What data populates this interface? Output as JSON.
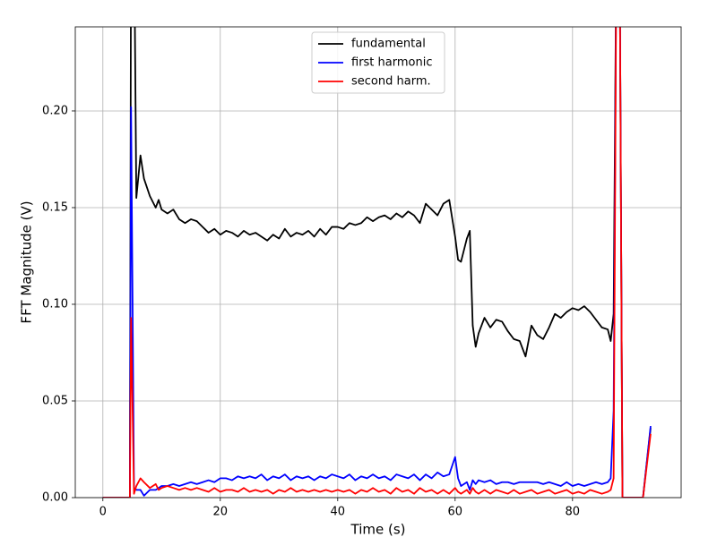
{
  "chart_data": {
    "type": "line",
    "xlabel": "Time (s)",
    "ylabel": "FFT Magnitude (V)",
    "x": [
      0,
      2,
      4,
      4.6,
      4.8,
      5.3,
      5.7,
      6.4,
      7,
      8,
      9,
      9.5,
      10,
      11,
      12,
      13,
      14,
      15,
      16,
      17,
      18,
      19,
      20,
      21,
      22,
      23,
      24,
      25,
      26,
      27,
      28,
      29,
      30,
      31,
      32,
      33,
      34,
      35,
      36,
      37,
      38,
      39,
      40,
      41,
      42,
      43,
      44,
      45,
      46,
      47,
      48,
      49,
      50,
      51,
      52,
      53,
      54,
      55,
      56,
      57,
      58,
      59,
      60,
      60.5,
      61,
      62,
      62.5,
      63,
      63.5,
      64,
      65,
      66,
      67,
      68,
      69,
      70,
      71,
      72,
      73,
      74,
      75,
      76,
      77,
      78,
      79,
      80,
      81,
      82,
      83,
      84,
      85,
      86,
      86.5,
      87,
      87.5,
      88,
      88.5,
      89,
      90,
      91,
      92,
      93.3
    ],
    "series": [
      {
        "name": "fundamental",
        "color": "#000000",
        "values": [
          0,
          0,
          0,
          0,
          0.3,
          0.3,
          0.155,
          0.177,
          0.165,
          0.156,
          0.15,
          0.154,
          0.149,
          0.147,
          0.149,
          0.144,
          0.142,
          0.144,
          0.143,
          0.14,
          0.137,
          0.139,
          0.136,
          0.138,
          0.137,
          0.135,
          0.138,
          0.136,
          0.137,
          0.135,
          0.133,
          0.136,
          0.134,
          0.139,
          0.135,
          0.137,
          0.136,
          0.138,
          0.135,
          0.139,
          0.136,
          0.14,
          0.14,
          0.139,
          0.142,
          0.141,
          0.142,
          0.145,
          0.143,
          0.145,
          0.146,
          0.144,
          0.147,
          0.145,
          0.148,
          0.146,
          0.142,
          0.152,
          0.149,
          0.146,
          0.152,
          0.154,
          0.135,
          0.123,
          0.122,
          0.134,
          0.138,
          0.089,
          0.078,
          0.085,
          0.093,
          0.088,
          0.092,
          0.091,
          0.086,
          0.082,
          0.081,
          0.073,
          0.089,
          0.084,
          0.082,
          0.088,
          0.095,
          0.093,
          0.096,
          0.098,
          0.097,
          0.099,
          0.096,
          0.092,
          0.088,
          0.087,
          0.081,
          0.095,
          0.3,
          0.3,
          0,
          0,
          0,
          0,
          0,
          0.036
        ]
      },
      {
        "name": "first harmonic",
        "color": "#0000ff",
        "values": [
          0,
          0,
          0,
          0,
          0.202,
          0.005,
          0.004,
          0.004,
          0.001,
          0.004,
          0.004,
          0.005,
          0.006,
          0.006,
          0.007,
          0.006,
          0.007,
          0.008,
          0.007,
          0.008,
          0.009,
          0.008,
          0.01,
          0.01,
          0.009,
          0.011,
          0.01,
          0.011,
          0.01,
          0.012,
          0.009,
          0.011,
          0.01,
          0.012,
          0.009,
          0.011,
          0.01,
          0.011,
          0.009,
          0.011,
          0.01,
          0.012,
          0.011,
          0.01,
          0.012,
          0.009,
          0.011,
          0.01,
          0.012,
          0.01,
          0.011,
          0.009,
          0.012,
          0.011,
          0.01,
          0.012,
          0.009,
          0.012,
          0.01,
          0.013,
          0.011,
          0.012,
          0.021,
          0.01,
          0.006,
          0.008,
          0.004,
          0.009,
          0.007,
          0.009,
          0.008,
          0.009,
          0.007,
          0.008,
          0.008,
          0.007,
          0.008,
          0.008,
          0.008,
          0.008,
          0.007,
          0.008,
          0.007,
          0.006,
          0.008,
          0.006,
          0.007,
          0.006,
          0.007,
          0.008,
          0.007,
          0.008,
          0.01,
          0.045,
          0.3,
          0.3,
          0,
          0,
          0,
          0,
          0,
          0.037
        ]
      },
      {
        "name": "second harm.",
        "color": "#ff0000",
        "values": [
          0,
          0,
          0,
          0,
          0.093,
          0.002,
          0.006,
          0.01,
          0.008,
          0.005,
          0.007,
          0.004,
          0.005,
          0.006,
          0.005,
          0.004,
          0.005,
          0.004,
          0.005,
          0.004,
          0.003,
          0.005,
          0.003,
          0.004,
          0.004,
          0.003,
          0.005,
          0.003,
          0.004,
          0.003,
          0.004,
          0.002,
          0.004,
          0.003,
          0.005,
          0.003,
          0.004,
          0.003,
          0.004,
          0.003,
          0.004,
          0.003,
          0.004,
          0.003,
          0.004,
          0.002,
          0.004,
          0.003,
          0.005,
          0.003,
          0.004,
          0.002,
          0.005,
          0.003,
          0.004,
          0.002,
          0.005,
          0.003,
          0.004,
          0.002,
          0.004,
          0.002,
          0.005,
          0.003,
          0.002,
          0.004,
          0.002,
          0.005,
          0.003,
          0.002,
          0.004,
          0.002,
          0.004,
          0.003,
          0.002,
          0.004,
          0.002,
          0.003,
          0.004,
          0.002,
          0.003,
          0.004,
          0.002,
          0.003,
          0.004,
          0.002,
          0.003,
          0.002,
          0.004,
          0.003,
          0.002,
          0.003,
          0.004,
          0.01,
          0.3,
          0.3,
          0,
          0,
          0,
          0,
          0,
          0.033
        ]
      }
    ],
    "xlim": [
      -4.7,
      98.5
    ],
    "ylim": [
      0,
      0.2435
    ],
    "xticks": [
      0,
      20,
      40,
      60,
      80
    ],
    "yticks": [
      {
        "value": 0,
        "label": "0.00"
      },
      0.05,
      {
        "value": 0.1,
        "label": "0.10"
      },
      0.15,
      {
        "value": 0.2,
        "label": "0.20"
      }
    ],
    "grid": true,
    "legend": "upper center"
  }
}
